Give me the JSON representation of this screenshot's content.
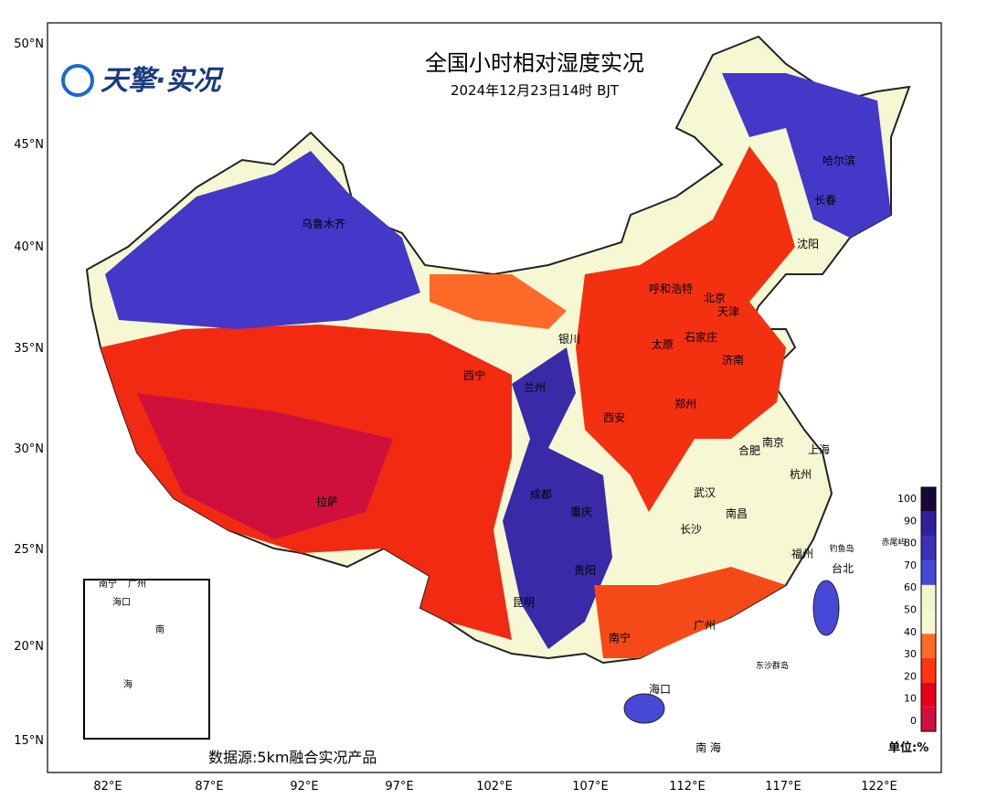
{
  "header": {
    "logo": "天擎·实况",
    "title": "全国小时相对湿度实况",
    "subtitle": "2024年12月23日14时 BJT"
  },
  "lat_labels": [
    "50°N",
    "45°N",
    "40°N",
    "35°N",
    "30°N",
    "25°N",
    "20°N",
    "15°N"
  ],
  "lon_labels": [
    "82°E",
    "87°E",
    "92°E",
    "97°E",
    "102°E",
    "107°E",
    "112°E",
    "117°E",
    "122°E"
  ],
  "cities": [
    "乌鲁木齐",
    "哈尔滨",
    "长春",
    "沈阳",
    "呼和浩特",
    "北京",
    "天津",
    "银川",
    "太原",
    "石家庄",
    "济南",
    "西宁",
    "兰州",
    "郑州",
    "西安",
    "南京",
    "合肥",
    "上海",
    "杭州",
    "成都",
    "武汉",
    "重庆",
    "南昌",
    "长沙",
    "拉萨",
    "福州",
    "钓鱼岛",
    "赤尾屿",
    "台北",
    "贵阳",
    "昆明",
    "广州",
    "南宁",
    "东沙群岛",
    "海口",
    "南 海"
  ],
  "inset_labels": [
    "南宁",
    "广州",
    "海口",
    "南",
    "海"
  ],
  "colorbar": {
    "ticks": [
      100,
      90,
      80,
      70,
      60,
      50,
      40,
      30,
      20,
      10,
      0
    ],
    "colors": [
      "#d0103c",
      "#e8001a",
      "#ff3510",
      "#ff6a28",
      "#f8f8d0",
      "#eef8cc",
      "#4848d8",
      "#3a32b8",
      "#30209a",
      "#180838"
    ],
    "unit": "单位:%"
  },
  "source": "数据源:5km融合实况产品"
}
